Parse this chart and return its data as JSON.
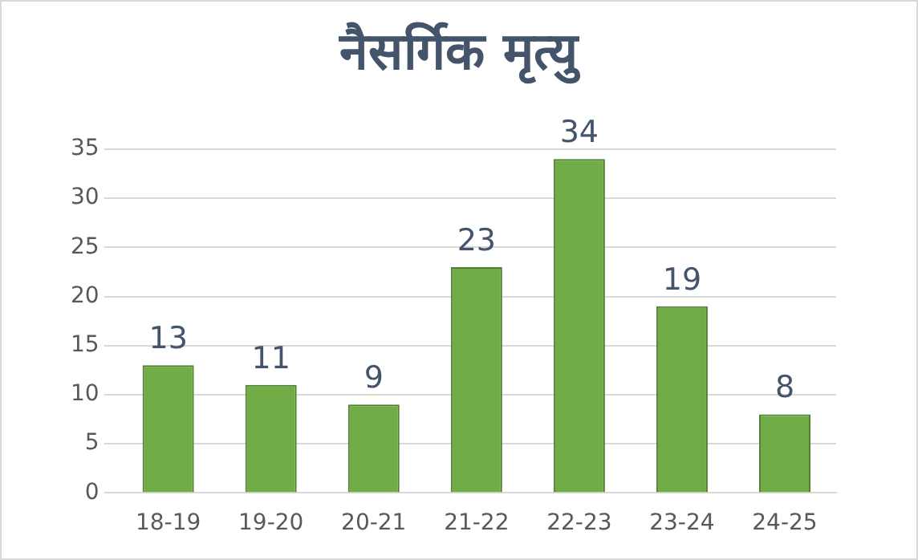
{
  "chart_data": {
    "type": "bar",
    "title": "नैसर्गिक मृत्यु",
    "categories": [
      "18-19",
      "19-20",
      "20-21",
      "21-22",
      "22-23",
      "23-24",
      "24-25"
    ],
    "values": [
      13,
      11,
      9,
      23,
      34,
      19,
      8
    ],
    "color": "#70ad47",
    "ylim": [
      0,
      35
    ],
    "yticks": [
      0,
      5,
      10,
      15,
      20,
      25,
      30,
      35
    ],
    "grid": "y",
    "data_labels": true,
    "legend": false
  }
}
